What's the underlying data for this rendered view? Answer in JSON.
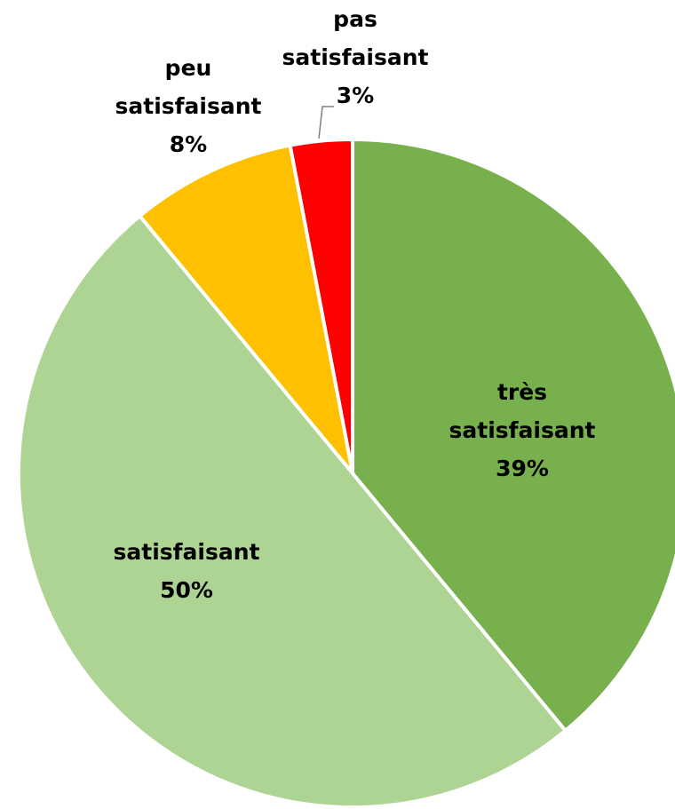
{
  "chart_data": {
    "type": "pie",
    "categories": [
      "très satisfaisant",
      "satisfaisant",
      "peu satisfaisant",
      "pas satisfaisant"
    ],
    "values": [
      39,
      50,
      8,
      3
    ],
    "value_labels": [
      "39%",
      "50%",
      "8%",
      "3%"
    ],
    "colors": [
      "#77b04c",
      "#aed494",
      "#ffc000",
      "#ff0000"
    ]
  }
}
